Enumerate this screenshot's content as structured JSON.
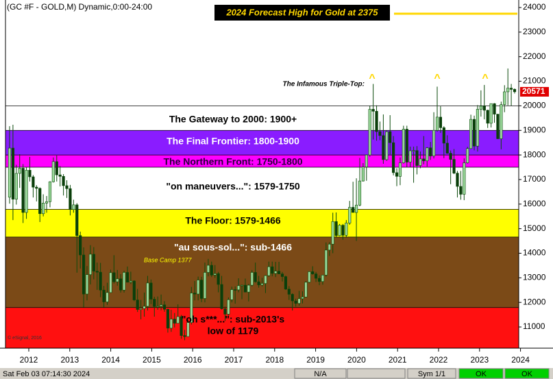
{
  "chart_data": {
    "type": "candlestick",
    "title": "(GC #F - GOLD,M) Dynamic,0:00-24:00",
    "ylim": [
      10137,
      24307
    ],
    "yticks": [
      11000,
      12000,
      13000,
      14000,
      15000,
      16000,
      17000,
      18000,
      19000,
      20000,
      21000,
      22000,
      23000,
      24000
    ],
    "xticks": [
      2012,
      2013,
      2014,
      2015,
      2016,
      2017,
      2018,
      2019,
      2020,
      2021,
      2022,
      2023,
      2024
    ],
    "up_color": "#9ad89a",
    "down_color": "#0b3d0b",
    "wick_color": "#0b4a0b",
    "bands": [
      {
        "lines": [
          "The Gateway to 2000:  1900+"
        ],
        "lo": 19000,
        "hi": 20000,
        "color": "#ffffff",
        "text_color": "#000000"
      },
      {
        "lines": [
          "The Final Frontier:  1800-1900"
        ],
        "lo": 18000,
        "hi": 19000,
        "color": "#8a1cff",
        "text_color": "#ffffff"
      },
      {
        "lines": [
          "The Northern Front:  1750-1800"
        ],
        "lo": 17500,
        "hi": 18000,
        "color": "#ff00ff",
        "text_color": "#2a003a"
      },
      {
        "lines": [
          "\"on maneuvers...\":  1579-1750"
        ],
        "lo": 15790,
        "hi": 17500,
        "color": "#ffffff",
        "text_color": "#000000"
      },
      {
        "lines": [
          "The Floor:  1579-1466"
        ],
        "lo": 14660,
        "hi": 15790,
        "color": "#ffff00",
        "text_color": "#000000"
      },
      {
        "lines": [
          "\"au sous-sol...\":  sub-1466"
        ],
        "lo": 11790,
        "hi": 14660,
        "color": "#7b4a17",
        "text_color": "#ffffff"
      },
      {
        "lines": [
          "\"oh s***...\":  sub-2013's",
          "low of 1179"
        ],
        "hi": 11790,
        "color": "#ff1010",
        "text_color": "#000000"
      }
    ],
    "forecast": {
      "label": "2024 Forecast High for Gold at 2375",
      "value": 23750,
      "color": "#ffd700"
    },
    "triple_top": {
      "label": "The Infamous Triple-Top:",
      "markers": [
        "^",
        "^",
        "^"
      ]
    },
    "base_camp": "Base Camp 1377",
    "copyright": "© eSignal, 2016",
    "last_value": 20571,
    "status": {
      "time": "Sat Feb 03 07:14:30 2024",
      "fields": [
        "N/A",
        "Sym 1/1",
        "OK",
        "OK"
      ]
    },
    "series": [
      {
        "name": "GC #F",
        "values": [
          [
            16280,
            19170,
            16020,
            18280
          ],
          [
            18280,
            19230,
            15350,
            16200
          ],
          [
            16200,
            17600,
            15980,
            17250
          ],
          [
            17250,
            18030,
            16660,
            17460
          ],
          [
            17460,
            17630,
            15230,
            15660
          ],
          [
            15660,
            17500,
            15400,
            17380
          ],
          [
            17380,
            17920,
            16920,
            17110
          ],
          [
            17110,
            17180,
            16270,
            16690
          ],
          [
            16690,
            16770,
            16110,
            16640
          ],
          [
            16640,
            16680,
            15270,
            15610
          ],
          [
            15610,
            16400,
            15500,
            16040
          ],
          [
            16040,
            16330,
            15650,
            16100
          ],
          [
            16100,
            16930,
            15870,
            16910
          ],
          [
            16910,
            17900,
            16880,
            17730
          ],
          [
            17730,
            17980,
            16920,
            17190
          ],
          [
            17190,
            17550,
            16720,
            17130
          ],
          [
            17130,
            17220,
            16350,
            16750
          ],
          [
            16750,
            16970,
            16250,
            16630
          ],
          [
            16630,
            16780,
            15540,
            15780
          ],
          [
            15780,
            16180,
            15650,
            15970
          ],
          [
            15970,
            16040,
            13210,
            14720
          ],
          [
            14720,
            14880,
            13380,
            13930
          ],
          [
            13930,
            14240,
            11800,
            12340
          ],
          [
            12340,
            13480,
            12080,
            13130
          ],
          [
            13130,
            14330,
            12730,
            13960
          ],
          [
            13960,
            14250,
            12940,
            13270
          ],
          [
            13270,
            13620,
            12510,
            13230
          ],
          [
            13230,
            13610,
            12210,
            12500
          ],
          [
            12500,
            12670,
            11800,
            12020
          ],
          [
            12020,
            12800,
            11900,
            12400
          ],
          [
            12400,
            13330,
            12390,
            13210
          ],
          [
            13210,
            13920,
            12770,
            12840
          ],
          [
            12840,
            13320,
            12680,
            12960
          ],
          [
            12960,
            13150,
            12400,
            12500
          ],
          [
            12500,
            13290,
            12400,
            13220
          ],
          [
            13220,
            13460,
            12820,
            12820
          ],
          [
            12820,
            13250,
            12750,
            12870
          ],
          [
            12870,
            12900,
            12050,
            12100
          ],
          [
            12100,
            12550,
            11610,
            11710
          ],
          [
            11710,
            12100,
            11310,
            11750
          ],
          [
            11750,
            12400,
            11420,
            11840
          ],
          [
            11840,
            13080,
            11670,
            12790
          ],
          [
            12790,
            12930,
            11930,
            12130
          ],
          [
            12130,
            12230,
            11420,
            11830
          ],
          [
            11830,
            12240,
            11700,
            11840
          ],
          [
            11840,
            12320,
            11680,
            11900
          ],
          [
            11900,
            12050,
            11620,
            11720
          ],
          [
            11720,
            11740,
            10770,
            10950
          ],
          [
            10950,
            11700,
            10800,
            11320
          ],
          [
            11320,
            11570,
            10980,
            11150
          ],
          [
            11150,
            11920,
            11140,
            11420
          ],
          [
            11420,
            11490,
            10520,
            10650
          ],
          [
            10650,
            10880,
            10460,
            10610
          ],
          [
            10610,
            11290,
            10600,
            11180
          ],
          [
            11180,
            12630,
            11100,
            12380
          ],
          [
            12380,
            12870,
            12080,
            12340
          ],
          [
            12340,
            13050,
            12080,
            12910
          ],
          [
            12910,
            13040,
            12010,
            12160
          ],
          [
            12160,
            13620,
            12000,
            13220
          ],
          [
            13220,
            13770,
            13060,
            13510
          ],
          [
            13510,
            13660,
            13030,
            13110
          ],
          [
            13110,
            13520,
            13000,
            13170
          ],
          [
            13170,
            13240,
            12410,
            12730
          ],
          [
            12730,
            13080,
            11710,
            11740
          ],
          [
            11740,
            11830,
            11240,
            11520
          ],
          [
            11520,
            12200,
            11460,
            12110
          ],
          [
            12110,
            12640,
            12000,
            12520
          ],
          [
            12520,
            12650,
            11950,
            12510
          ],
          [
            12510,
            12980,
            12410,
            12680
          ],
          [
            12680,
            12720,
            12130,
            12700
          ],
          [
            12700,
            12970,
            12420,
            12420
          ],
          [
            12420,
            12750,
            12040,
            12700
          ],
          [
            12700,
            13310,
            12650,
            13220
          ],
          [
            13220,
            13620,
            12800,
            12840
          ],
          [
            12840,
            13080,
            12600,
            12710
          ],
          [
            12710,
            13000,
            12650,
            12770
          ],
          [
            12770,
            13110,
            12380,
            13090
          ],
          [
            13090,
            13660,
            13040,
            13450
          ],
          [
            13450,
            13660,
            13060,
            13180
          ],
          [
            13180,
            13650,
            13030,
            13270
          ],
          [
            13270,
            13650,
            13150,
            13160
          ],
          [
            13160,
            13240,
            12850,
            13050
          ],
          [
            13050,
            13090,
            12510,
            12540
          ],
          [
            12540,
            12660,
            12100,
            12330
          ],
          [
            12330,
            12370,
            11670,
            12060
          ],
          [
            12060,
            12150,
            11830,
            11960
          ],
          [
            11960,
            12470,
            11870,
            12150
          ],
          [
            12150,
            12450,
            11960,
            12220
          ],
          [
            12220,
            12860,
            12210,
            12820
          ],
          [
            12820,
            13270,
            12780,
            13250
          ],
          [
            13250,
            13470,
            13130,
            13160
          ],
          [
            13160,
            13240,
            12830,
            12980
          ],
          [
            12980,
            13100,
            12700,
            12850
          ],
          [
            12850,
            13120,
            12720,
            13110
          ],
          [
            13110,
            14440,
            13050,
            14130
          ],
          [
            14130,
            14450,
            13890,
            14370
          ],
          [
            14370,
            15650,
            14000,
            15290
          ],
          [
            15290,
            15660,
            14660,
            14720
          ],
          [
            14720,
            15190,
            14700,
            15140
          ],
          [
            15140,
            15190,
            14550,
            14730
          ],
          [
            14730,
            15350,
            14660,
            15230
          ],
          [
            15230,
            16130,
            15160,
            15870
          ],
          [
            15870,
            16910,
            15660,
            15660
          ],
          [
            15660,
            17050,
            14500,
            15960
          ],
          [
            15960,
            17880,
            15910,
            16940
          ],
          [
            16940,
            17670,
            16920,
            17510
          ],
          [
            17510,
            18020,
            16950,
            18000
          ],
          [
            18000,
            20000,
            17930,
            19860
          ],
          [
            19860,
            20890,
            18630,
            19780
          ],
          [
            19780,
            20020,
            18580,
            18950
          ],
          [
            18950,
            19360,
            18600,
            18790
          ],
          [
            18790,
            19650,
            17640,
            17810
          ],
          [
            17810,
            19000,
            17760,
            18950
          ],
          [
            18950,
            19620,
            18020,
            18500
          ],
          [
            18500,
            18770,
            17170,
            17280
          ],
          [
            17280,
            17460,
            16730,
            17130
          ],
          [
            17130,
            17900,
            16770,
            17680
          ],
          [
            17680,
            19190,
            17650,
            19050
          ],
          [
            19050,
            19190,
            17500,
            17710
          ],
          [
            17710,
            18340,
            17510,
            18170
          ],
          [
            18170,
            18340,
            16870,
            18180
          ],
          [
            18180,
            18360,
            17210,
            17570
          ],
          [
            17570,
            18140,
            17460,
            17840
          ],
          [
            17840,
            18770,
            17620,
            17760
          ],
          [
            17760,
            18320,
            17530,
            18290
          ],
          [
            18290,
            18530,
            17800,
            17960
          ],
          [
            17960,
            19740,
            17860,
            19000
          ],
          [
            19000,
            20780,
            18950,
            19540
          ],
          [
            19540,
            19980,
            18900,
            19110
          ],
          [
            19110,
            19170,
            17870,
            18480
          ],
          [
            18480,
            18800,
            18050,
            18070
          ],
          [
            18070,
            18180,
            16810,
            17820
          ],
          [
            17820,
            18240,
            17220,
            17260
          ],
          [
            17260,
            17350,
            16270,
            16720
          ],
          [
            16720,
            17350,
            16180,
            16400
          ],
          [
            16400,
            17860,
            16160,
            17680
          ],
          [
            17680,
            18330,
            17650,
            18260
          ],
          [
            18260,
            19640,
            18240,
            19450
          ],
          [
            19450,
            19600,
            18190,
            18360
          ],
          [
            18360,
            20030,
            18140,
            19860
          ],
          [
            19860,
            20630,
            19560,
            19990
          ],
          [
            19990,
            20850,
            19450,
            19820
          ],
          [
            19820,
            19840,
            19100,
            19290
          ],
          [
            19290,
            20090,
            19120,
            20090
          ],
          [
            20090,
            20110,
            19310,
            19660
          ],
          [
            19660,
            19670,
            18650,
            18660
          ],
          [
            18660,
            20170,
            18230,
            20050
          ],
          [
            20050,
            20840,
            19740,
            20570
          ],
          [
            20570,
            21520,
            20020,
            20720
          ],
          [
            20720,
            20890,
            20010,
            20670
          ],
          [
            20670,
            20710,
            20500,
            20571
          ]
        ]
      }
    ]
  }
}
